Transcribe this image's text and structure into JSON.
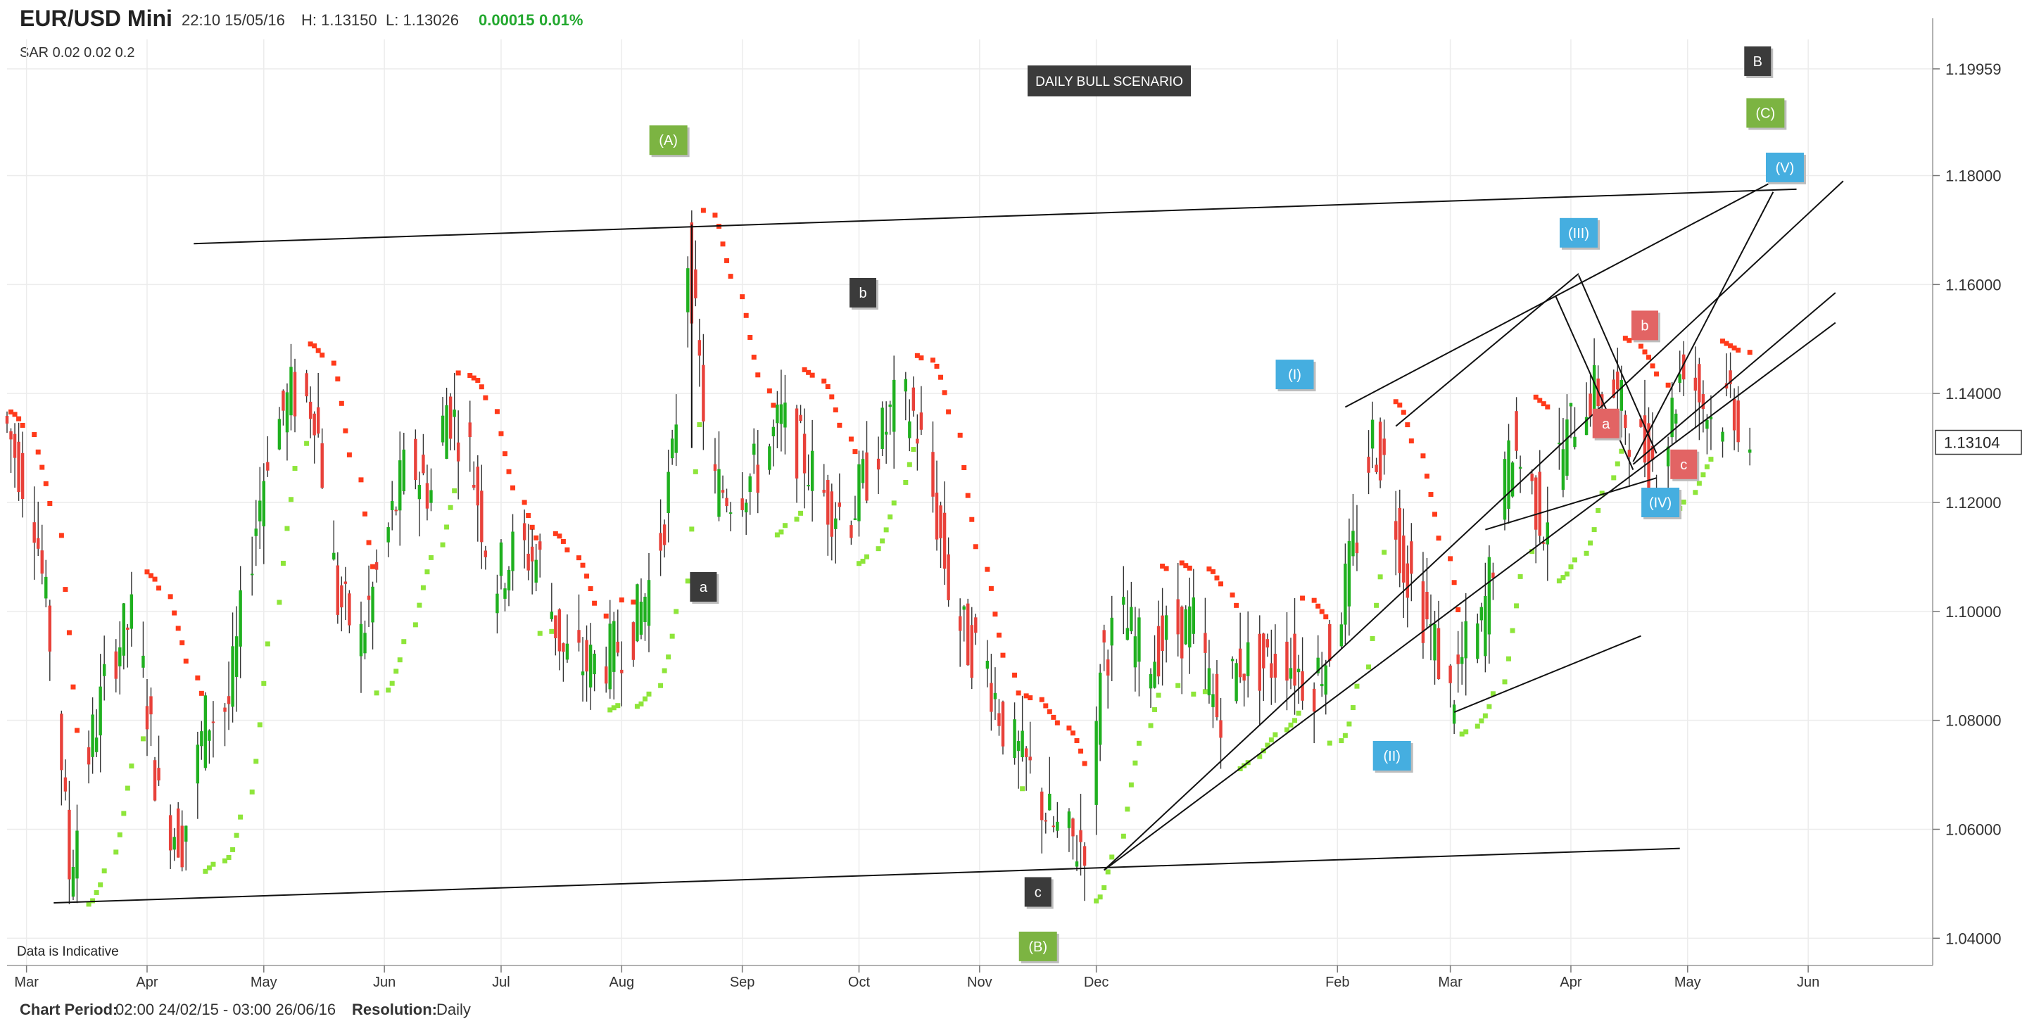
{
  "header": {
    "symbol": "EUR/USD Mini",
    "datetime": "22:10 15/05/16",
    "high": "H: 1.13150",
    "low": "L: 1.13026",
    "change": "0.00015",
    "change_pct": "0.01%",
    "indicator": "SAR  0.02  0.02  0.2"
  },
  "footer": {
    "period_label": "Chart Period:",
    "period_value": "02:00 24/02/15 - 03:00 26/06/16",
    "resolution_label": "Resolution:",
    "resolution_value": "Daily"
  },
  "chart_data": {
    "type": "candlestick",
    "title": "DAILY BULL SCENARIO",
    "watermark": "Data is Indicative",
    "ylim": [
      1.035,
      1.205
    ],
    "price_ticks": [
      "1.04000",
      "1.06000",
      "1.08000",
      "1.10000",
      "1.12000",
      "1.14000",
      "1.16000",
      "1.18000",
      "1.19959"
    ],
    "tick_values": [
      1.04,
      1.06,
      1.08,
      1.1,
      1.12,
      1.14,
      1.16,
      1.18,
      1.19959
    ],
    "current_price": "1.13104",
    "current_value": 1.13104,
    "months": [
      "Mar",
      "Apr",
      "May",
      "Jun",
      "Jul",
      "Aug",
      "Sep",
      "Oct",
      "Nov",
      "Dec",
      "Feb",
      "Mar",
      "Apr",
      "May",
      "Jun"
    ],
    "month_day_index": [
      5,
      36,
      66,
      97,
      127,
      158,
      189,
      219,
      250,
      280,
      342,
      371,
      402,
      432,
      463
    ],
    "day_range": [
      0,
      495
    ],
    "colors": {
      "up": "#1fb01f",
      "down": "#e8413a",
      "sar_above": "#ff3a1a",
      "sar_below": "#8ee53a",
      "grid": "#ececec"
    },
    "price_path": [
      [
        0,
        1.136
      ],
      [
        8,
        1.118
      ],
      [
        14,
        1.083
      ],
      [
        17,
        1.052
      ],
      [
        22,
        1.074
      ],
      [
        28,
        1.092
      ],
      [
        34,
        1.1
      ],
      [
        40,
        1.065
      ],
      [
        46,
        1.058
      ],
      [
        52,
        1.08
      ],
      [
        58,
        1.083
      ],
      [
        62,
        1.103
      ],
      [
        68,
        1.13
      ],
      [
        74,
        1.14
      ],
      [
        80,
        1.138
      ],
      [
        86,
        1.102
      ],
      [
        92,
        1.095
      ],
      [
        98,
        1.112
      ],
      [
        104,
        1.128
      ],
      [
        110,
        1.122
      ],
      [
        114,
        1.138
      ],
      [
        120,
        1.129
      ],
      [
        126,
        1.105
      ],
      [
        132,
        1.112
      ],
      [
        138,
        1.109
      ],
      [
        144,
        1.092
      ],
      [
        150,
        1.09
      ],
      [
        156,
        1.092
      ],
      [
        162,
        1.097
      ],
      [
        168,
        1.109
      ],
      [
        172,
        1.127
      ],
      [
        176,
        1.166
      ],
      [
        182,
        1.123
      ],
      [
        188,
        1.122
      ],
      [
        194,
        1.126
      ],
      [
        200,
        1.135
      ],
      [
        206,
        1.128
      ],
      [
        212,
        1.12
      ],
      [
        218,
        1.118
      ],
      [
        224,
        1.129
      ],
      [
        230,
        1.139
      ],
      [
        234,
        1.136
      ],
      [
        238,
        1.125
      ],
      [
        244,
        1.101
      ],
      [
        248,
        1.094
      ],
      [
        252,
        1.092
      ],
      [
        258,
        1.077
      ],
      [
        264,
        1.07
      ],
      [
        270,
        1.06
      ],
      [
        276,
        1.057
      ],
      [
        280,
        1.06
      ],
      [
        282,
        1.092
      ],
      [
        288,
        1.098
      ],
      [
        294,
        1.091
      ],
      [
        300,
        1.096
      ],
      [
        306,
        1.098
      ],
      [
        312,
        1.081
      ],
      [
        318,
        1.091
      ],
      [
        324,
        1.09
      ],
      [
        330,
        1.092
      ],
      [
        336,
        1.086
      ],
      [
        342,
        1.095
      ],
      [
        348,
        1.114
      ],
      [
        352,
        1.132
      ],
      [
        356,
        1.125
      ],
      [
        360,
        1.109
      ],
      [
        364,
        1.102
      ],
      [
        368,
        1.094
      ],
      [
        372,
        1.084
      ],
      [
        376,
        1.093
      ],
      [
        380,
        1.097
      ],
      [
        384,
        1.115
      ],
      [
        388,
        1.131
      ],
      [
        392,
        1.124
      ],
      [
        396,
        1.116
      ],
      [
        400,
        1.128
      ],
      [
        404,
        1.136
      ],
      [
        408,
        1.14
      ],
      [
        414,
        1.14
      ],
      [
        420,
        1.131
      ],
      [
        426,
        1.126
      ],
      [
        432,
        1.147
      ],
      [
        436,
        1.14
      ],
      [
        440,
        1.134
      ],
      [
        444,
        1.14
      ],
      [
        448,
        1.131
      ]
    ],
    "trendlines": [
      [
        [
          12,
          1.0465
        ],
        [
          430,
          1.0565
        ]
      ],
      [
        [
          48,
          1.1675
        ],
        [
          460,
          1.1775
        ]
      ],
      [
        [
          282,
          1.0525
        ],
        [
          470,
          1.153
        ]
      ],
      [
        [
          372,
          1.0815
        ],
        [
          420,
          1.0955
        ]
      ],
      [
        [
          344,
          1.1375
        ],
        [
          456,
          1.1797
        ]
      ],
      [
        [
          380,
          1.115
        ],
        [
          424,
          1.1245
        ]
      ],
      [
        [
          357,
          1.134
        ],
        [
          404,
          1.162
        ]
      ],
      [
        [
          398,
          1.158
        ],
        [
          418,
          1.126
        ]
      ],
      [
        [
          404,
          1.1617
        ],
        [
          424,
          1.129
        ]
      ],
      [
        [
          418,
          1.1275
        ],
        [
          454,
          1.177
        ]
      ],
      [
        [
          418,
          1.127
        ],
        [
          470,
          1.1585
        ]
      ],
      [
        [
          282,
          1.0525
        ],
        [
          472,
          1.179
        ]
      ],
      [
        [
          176,
          1.13
        ],
        [
          176,
          1.171
        ]
      ]
    ],
    "annotations": [
      {
        "text": "(A)",
        "day": 170,
        "price": 1.1865,
        "color": "#7cb442"
      },
      {
        "text": "b",
        "day": 220,
        "price": 1.1585,
        "color": "#3b3b3b"
      },
      {
        "text": "a",
        "day": 179,
        "price": 1.1045,
        "color": "#3b3b3b"
      },
      {
        "text": "c",
        "day": 265,
        "price": 1.0485,
        "color": "#3b3b3b"
      },
      {
        "text": "(B)",
        "day": 265,
        "price": 1.0385,
        "color": "#7cb442"
      },
      {
        "text": "(I)",
        "day": 331,
        "price": 1.1435,
        "color": "#45aee0"
      },
      {
        "text": "(II)",
        "day": 356,
        "price": 1.0735,
        "color": "#45aee0"
      },
      {
        "text": "(III)",
        "day": 404,
        "price": 1.1695,
        "color": "#45aee0"
      },
      {
        "text": "(IV)",
        "day": 425,
        "price": 1.12,
        "color": "#45aee0"
      },
      {
        "text": "(V)",
        "day": 457,
        "price": 1.1815,
        "color": "#45aee0"
      },
      {
        "text": "a",
        "day": 411,
        "price": 1.1345,
        "color": "#e26464"
      },
      {
        "text": "b",
        "day": 421,
        "price": 1.1525,
        "color": "#e26464"
      },
      {
        "text": "c",
        "day": 431,
        "price": 1.127,
        "color": "#e26464"
      },
      {
        "text": "B",
        "day": 450,
        "price": 1.201,
        "color": "#3b3b3b"
      },
      {
        "text": "(C)",
        "day": 452,
        "price": 1.1915,
        "color": "#7cb442"
      }
    ]
  }
}
